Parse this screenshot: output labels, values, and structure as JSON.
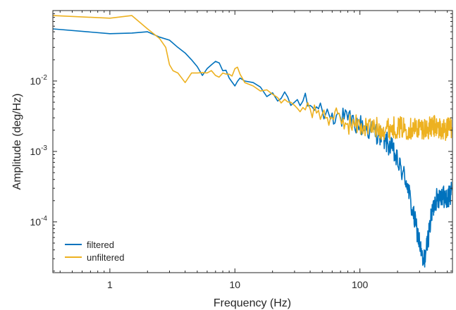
{
  "chart_data": {
    "type": "line",
    "xlabel": "Frequency (Hz)",
    "ylabel": "Amplitude (deg/Hz)",
    "x_scale": "log",
    "y_scale": "log",
    "xlim": [
      0.35,
      550
    ],
    "ylim": [
      1.9e-05,
      0.1
    ],
    "x_ticks": [
      {
        "value": 1,
        "label": "1"
      },
      {
        "value": 10,
        "label": "10"
      },
      {
        "value": 100,
        "label": "100"
      }
    ],
    "y_ticks": [
      {
        "value": 0.0001,
        "base": "10",
        "exp": "-4"
      },
      {
        "value": 0.001,
        "base": "10",
        "exp": "-3"
      },
      {
        "value": 0.01,
        "base": "10",
        "exp": "-2"
      }
    ],
    "grid": false,
    "legend_position": "bottom-left",
    "series": [
      {
        "name": "filtered",
        "color": "#0072BD",
        "points": [
          [
            0.35,
            0.055
          ],
          [
            1.0,
            0.047
          ],
          [
            1.5,
            0.048
          ],
          [
            2.0,
            0.05
          ],
          [
            2.5,
            0.042
          ],
          [
            3.0,
            0.038
          ],
          [
            3.5,
            0.03
          ],
          [
            4.0,
            0.025
          ],
          [
            4.5,
            0.02
          ],
          [
            5.0,
            0.016
          ],
          [
            5.5,
            0.012
          ],
          [
            6.0,
            0.015
          ],
          [
            6.5,
            0.017
          ],
          [
            7.0,
            0.019
          ],
          [
            7.5,
            0.018
          ],
          [
            8.0,
            0.014
          ],
          [
            9.0,
            0.011
          ],
          [
            10.0,
            0.0085
          ],
          [
            11.0,
            0.011
          ],
          [
            12.0,
            0.01
          ],
          [
            14.0,
            0.0095
          ],
          [
            16.0,
            0.0082
          ],
          [
            18.0,
            0.006
          ],
          [
            20.0,
            0.0068
          ],
          [
            22.0,
            0.0052
          ],
          [
            25.0,
            0.007
          ],
          [
            28.0,
            0.0045
          ],
          [
            30.0,
            0.005
          ],
          [
            35.0,
            0.0052
          ],
          [
            40.0,
            0.0045
          ],
          [
            45.0,
            0.0043
          ],
          [
            50.0,
            0.0038
          ],
          [
            60.0,
            0.0035
          ],
          [
            70.0,
            0.003
          ],
          [
            80.0,
            0.0028
          ],
          [
            90.0,
            0.0025
          ],
          [
            100.0,
            0.0024
          ],
          [
            120.0,
            0.002
          ],
          [
            140.0,
            0.0018
          ],
          [
            160.0,
            0.0014
          ],
          [
            180.0,
            0.0011
          ],
          [
            200.0,
            0.0007
          ],
          [
            220.0,
            0.0005
          ],
          [
            240.0,
            0.00035
          ],
          [
            260.0,
            0.00015
          ],
          [
            280.0,
            9e-05
          ],
          [
            300.0,
            5e-05
          ],
          [
            320.0,
            2.5e-05
          ],
          [
            340.0,
            4e-05
          ],
          [
            360.0,
            8e-05
          ],
          [
            380.0,
            0.00014
          ],
          [
            400.0,
            0.0002
          ],
          [
            450.0,
            0.00025
          ],
          [
            500.0,
            0.0002
          ],
          [
            540.0,
            0.00028
          ]
        ]
      },
      {
        "name": "unfiltered",
        "color": "#EDB120",
        "points": [
          [
            0.35,
            0.085
          ],
          [
            1.0,
            0.078
          ],
          [
            1.5,
            0.085
          ],
          [
            2.0,
            0.055
          ],
          [
            2.5,
            0.04
          ],
          [
            2.8,
            0.03
          ],
          [
            3.0,
            0.017
          ],
          [
            3.2,
            0.014
          ],
          [
            3.5,
            0.013
          ],
          [
            4.0,
            0.0095
          ],
          [
            4.5,
            0.013
          ],
          [
            5.0,
            0.013
          ],
          [
            6.0,
            0.013
          ],
          [
            7.0,
            0.012
          ],
          [
            8.0,
            0.013
          ],
          [
            9.0,
            0.0125
          ],
          [
            10.0,
            0.015
          ],
          [
            11.0,
            0.0125
          ],
          [
            12.0,
            0.0095
          ],
          [
            14.0,
            0.0085
          ],
          [
            16.0,
            0.0072
          ],
          [
            18.0,
            0.0075
          ],
          [
            20.0,
            0.0065
          ],
          [
            22.0,
            0.0058
          ],
          [
            25.0,
            0.0055
          ],
          [
            28.0,
            0.005
          ],
          [
            30.0,
            0.0045
          ],
          [
            35.0,
            0.0042
          ],
          [
            40.0,
            0.004
          ],
          [
            45.0,
            0.0035
          ],
          [
            50.0,
            0.0034
          ],
          [
            60.0,
            0.003
          ],
          [
            70.0,
            0.0028
          ],
          [
            80.0,
            0.0025
          ],
          [
            90.0,
            0.0024
          ],
          [
            100.0,
            0.0023
          ],
          [
            150.0,
            0.0021
          ],
          [
            200.0,
            0.0022
          ],
          [
            250.0,
            0.0021
          ],
          [
            300.0,
            0.0022
          ],
          [
            350.0,
            0.0021
          ],
          [
            400.0,
            0.0023
          ],
          [
            450.0,
            0.002
          ],
          [
            500.0,
            0.0021
          ],
          [
            540.0,
            0.0022
          ]
        ]
      }
    ]
  }
}
